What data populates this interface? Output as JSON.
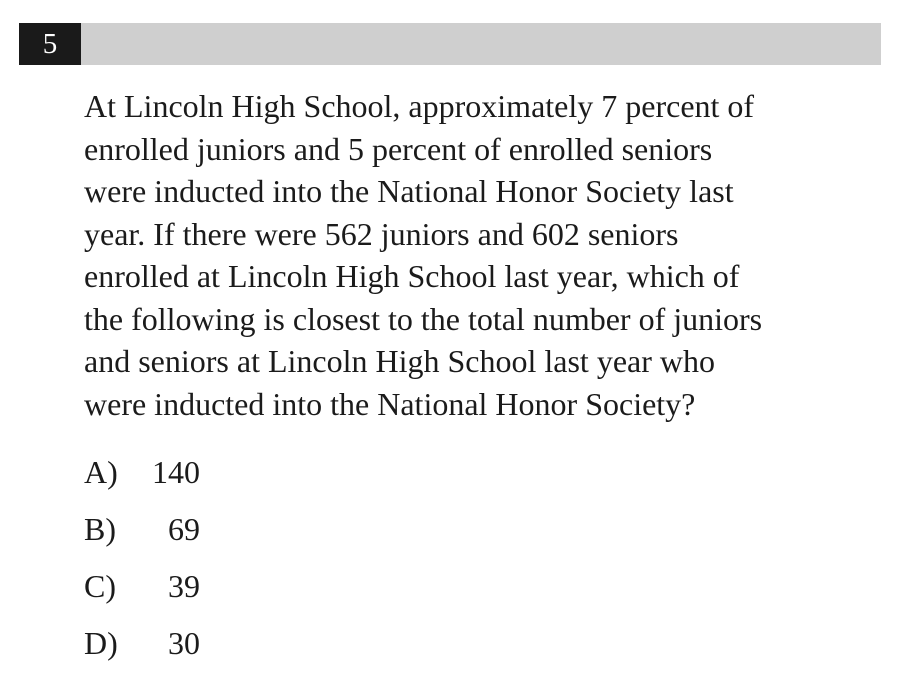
{
  "question": {
    "number": "5",
    "lines": [
      "At Lincoln High School, approximately 7 percent of",
      "enrolled juniors and 5 percent of enrolled seniors",
      "were inducted into the National Honor Society last",
      "year.  If there were 562 juniors and 602 seniors",
      "enrolled at Lincoln High School last year, which of",
      "the following is closest to the total number of juniors",
      "and seniors at Lincoln High School last year who",
      "were inducted into the National Honor Society?"
    ]
  },
  "choices": [
    {
      "letter": "A)",
      "value": "140"
    },
    {
      "letter": "B)",
      "value": "69"
    },
    {
      "letter": "C)",
      "value": "39"
    },
    {
      "letter": "D)",
      "value": "30"
    }
  ],
  "colors": {
    "header_bar": "#cfcfcf",
    "number_box": "#1a1a1a",
    "text": "#1b1b1b"
  }
}
